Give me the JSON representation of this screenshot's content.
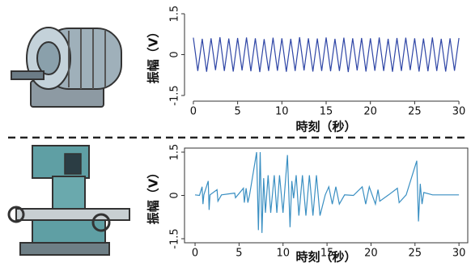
{
  "chart_data": [
    {
      "type": "line",
      "color": "#2f46a6",
      "xlabel": "時刻（秒）",
      "ylabel": "振幅（V）",
      "xlim": [
        -1,
        31
      ],
      "ylim": [
        -1.5,
        1.5
      ],
      "xticks": [
        0,
        5,
        10,
        15,
        20,
        25,
        30
      ],
      "yticks": [
        -1.5,
        0,
        1.5
      ],
      "frame": false,
      "x": [
        0,
        0.5,
        1,
        1.5,
        2,
        2.5,
        3,
        3.5,
        4,
        4.5,
        5,
        5.5,
        6,
        6.5,
        7,
        7.5,
        8,
        8.5,
        9,
        9.5,
        10,
        10.5,
        11,
        11.5,
        12,
        12.5,
        13,
        13.5,
        14,
        14.5,
        15,
        15.5,
        16,
        16.5,
        17,
        17.5,
        18,
        18.5,
        19,
        19.5,
        20,
        20.5,
        21,
        21.5,
        22,
        22.5,
        23,
        23.5,
        24,
        24.5,
        25,
        25.5,
        26,
        26.5,
        27,
        27.5,
        28,
        28.5,
        29,
        29.5,
        30
      ],
      "values": [
        0.62,
        -0.6,
        0.58,
        -0.63,
        0.6,
        -0.57,
        0.64,
        -0.6,
        0.59,
        -0.62,
        0.61,
        -0.58,
        0.63,
        -0.61,
        0.6,
        -0.64,
        0.57,
        -0.6,
        0.62,
        -0.59,
        0.6,
        -0.63,
        0.58,
        -0.6,
        0.64,
        -0.58,
        0.6,
        -0.62,
        0.59,
        -0.6,
        0.63,
        -0.61,
        0.58,
        -0.6,
        0.62,
        -0.64,
        0.6,
        -0.58,
        0.61,
        -0.62,
        0.6,
        -0.59,
        0.63,
        -0.6,
        0.58,
        -0.63,
        0.61,
        -0.6,
        0.62,
        -0.57,
        0.6,
        -0.62,
        0.59,
        -0.61,
        0.63,
        -0.6,
        0.58,
        -0.62,
        0.6,
        -0.59,
        0.61
      ]
    },
    {
      "type": "line",
      "color": "#3a8fc2",
      "xlabel": "時刻（秒）",
      "ylabel": "振幅（V）",
      "xlim": [
        -1.2,
        31
      ],
      "ylim": [
        -1.5,
        1.5
      ],
      "xticks": [
        0,
        5,
        10,
        15,
        20,
        25,
        30
      ],
      "yticks": [
        -1.5,
        0,
        1.5
      ],
      "frame": true,
      "x": [
        0,
        0.5,
        0.8,
        0.9,
        1,
        1.5,
        1.6,
        1.7,
        2.5,
        2.6,
        3,
        4.5,
        4.6,
        5.5,
        5.6,
        5.8,
        6,
        6.2,
        7,
        7.2,
        7.4,
        7.6,
        7.8,
        8,
        8.3,
        8.6,
        9,
        9.3,
        9.6,
        10,
        10.5,
        10.8,
        11,
        11.2,
        11.5,
        11.8,
        12.2,
        12.6,
        13,
        13.4,
        13.8,
        14.2,
        14.8,
        15.2,
        15.6,
        16,
        16.4,
        17,
        18,
        19,
        19.4,
        19.8,
        20.5,
        20.8,
        21,
        22,
        23,
        23.2,
        24,
        25.2,
        25.4,
        25.6,
        25.8,
        26,
        27,
        28,
        30
      ],
      "values": [
        0.02,
        0,
        0.3,
        -0.3,
        0.02,
        0.5,
        -0.5,
        0.02,
        0.2,
        -0.2,
        0.02,
        0.08,
        -0.08,
        0.25,
        -0.25,
        0.25,
        -0.25,
        0.02,
        1.5,
        -1.2,
        1.5,
        -1.3,
        0.6,
        -0.6,
        0.7,
        -0.6,
        0.7,
        -0.6,
        0.7,
        -0.6,
        1.4,
        -1.1,
        0.5,
        -0.1,
        0.7,
        -0.7,
        0.7,
        -0.7,
        0.7,
        -0.7,
        0.7,
        -0.7,
        0.02,
        0.3,
        -0.3,
        0.3,
        -0.3,
        0.02,
        0,
        0.3,
        -0.3,
        0.3,
        -0.3,
        0.2,
        -0.2,
        0.02,
        0.25,
        -0.25,
        0.02,
        1.2,
        -0.9,
        0.4,
        -0.3,
        0.1,
        0.02,
        0.02,
        0.02
      ]
    }
  ]
}
